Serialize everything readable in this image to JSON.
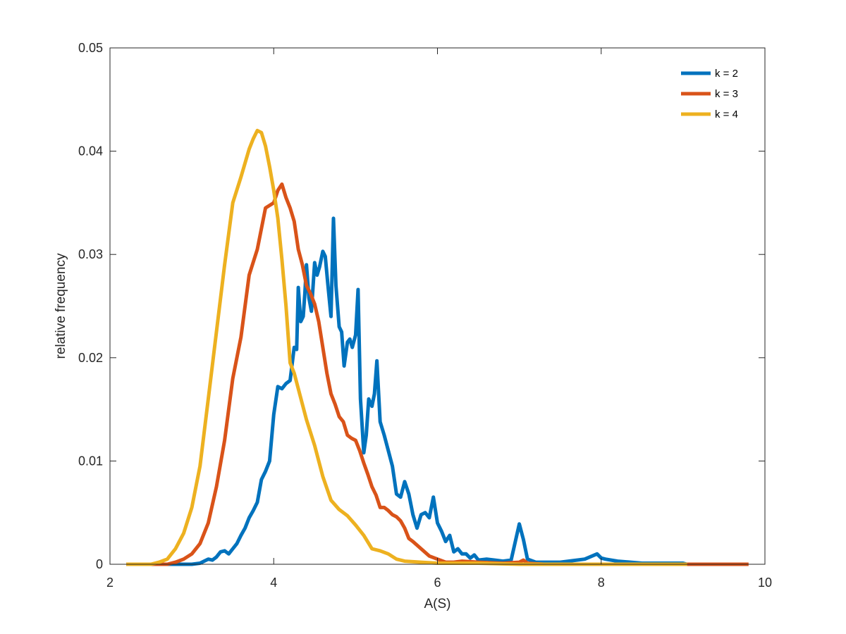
{
  "chart_data": {
    "type": "line",
    "xlabel": "A(S)",
    "ylabel": "relative frequency",
    "xlim": [
      2,
      10
    ],
    "ylim": [
      0,
      0.05
    ],
    "xticks": [
      2,
      4,
      6,
      8,
      10
    ],
    "xtick_labels": [
      "2",
      "4",
      "6",
      "8",
      "10"
    ],
    "yticks": [
      0,
      0.01,
      0.02,
      0.03,
      0.04,
      0.05
    ],
    "ytick_labels": [
      "0",
      "0.01",
      "0.02",
      "0.03",
      "0.04",
      "0.05"
    ],
    "grid": false,
    "legend_position": "top-right",
    "series": [
      {
        "name": "k = 2",
        "color": "#0072BD",
        "x": [
          2.2,
          2.9,
          3.0,
          3.1,
          3.15,
          3.2,
          3.25,
          3.3,
          3.35,
          3.4,
          3.45,
          3.5,
          3.55,
          3.6,
          3.65,
          3.7,
          3.75,
          3.8,
          3.85,
          3.9,
          3.95,
          4.0,
          4.05,
          4.1,
          4.15,
          4.2,
          4.25,
          4.28,
          4.3,
          4.33,
          4.36,
          4.38,
          4.4,
          4.43,
          4.46,
          4.5,
          4.53,
          4.56,
          4.6,
          4.63,
          4.66,
          4.7,
          4.73,
          4.76,
          4.8,
          4.83,
          4.86,
          4.9,
          4.93,
          4.96,
          5.0,
          5.03,
          5.06,
          5.1,
          5.13,
          5.16,
          5.2,
          5.23,
          5.26,
          5.3,
          5.35,
          5.4,
          5.45,
          5.5,
          5.55,
          5.6,
          5.65,
          5.7,
          5.75,
          5.8,
          5.85,
          5.9,
          5.95,
          6.0,
          6.05,
          6.1,
          6.15,
          6.2,
          6.25,
          6.3,
          6.35,
          6.4,
          6.45,
          6.5,
          6.6,
          6.7,
          6.8,
          6.9,
          7.0,
          7.05,
          7.1,
          7.2,
          7.3,
          7.5,
          7.8,
          7.95,
          8.0,
          8.05,
          8.2,
          8.5,
          9.0,
          9.05
        ],
        "values": [
          0,
          0,
          0,
          0.0001,
          0.0003,
          0.0005,
          0.0004,
          0.0007,
          0.0012,
          0.0013,
          0.001,
          0.0015,
          0.002,
          0.0028,
          0.0035,
          0.0045,
          0.0052,
          0.006,
          0.0082,
          0.009,
          0.01,
          0.0145,
          0.0172,
          0.017,
          0.0175,
          0.0178,
          0.021,
          0.0208,
          0.0268,
          0.0235,
          0.024,
          0.0262,
          0.029,
          0.0258,
          0.0245,
          0.0292,
          0.028,
          0.0288,
          0.0303,
          0.0298,
          0.0272,
          0.024,
          0.0335,
          0.027,
          0.023,
          0.0225,
          0.0192,
          0.0215,
          0.0218,
          0.021,
          0.0222,
          0.0266,
          0.016,
          0.0108,
          0.0125,
          0.016,
          0.0153,
          0.0165,
          0.0197,
          0.0138,
          0.0125,
          0.011,
          0.0095,
          0.0068,
          0.0065,
          0.008,
          0.0068,
          0.0048,
          0.0035,
          0.0048,
          0.005,
          0.0045,
          0.0065,
          0.004,
          0.0032,
          0.0022,
          0.0028,
          0.0012,
          0.0015,
          0.001,
          0.001,
          0.0006,
          0.0009,
          0.0004,
          0.0005,
          0.0004,
          0.0003,
          0.0004,
          0.0039,
          0.0024,
          0.0005,
          0.0002,
          0.0002,
          0.0002,
          0.0005,
          0.001,
          0.0006,
          0.0005,
          0.0003,
          0.0001,
          0.0001,
          0
        ],
        "x_note": ""
      },
      {
        "name": "k = 3",
        "color": "#D95319",
        "x": [
          2.2,
          2.7,
          2.8,
          2.9,
          3.0,
          3.1,
          3.2,
          3.3,
          3.4,
          3.5,
          3.6,
          3.7,
          3.8,
          3.9,
          4.0,
          4.05,
          4.1,
          4.15,
          4.2,
          4.25,
          4.3,
          4.35,
          4.4,
          4.45,
          4.5,
          4.55,
          4.6,
          4.65,
          4.7,
          4.75,
          4.8,
          4.85,
          4.9,
          4.95,
          5.0,
          5.05,
          5.1,
          5.15,
          5.2,
          5.25,
          5.3,
          5.35,
          5.4,
          5.45,
          5.5,
          5.55,
          5.6,
          5.65,
          5.7,
          5.8,
          5.9,
          6.0,
          6.1,
          6.2,
          6.3,
          6.5,
          6.8,
          7.0,
          7.05,
          7.1,
          7.3,
          8.0,
          9.0,
          9.8
        ],
        "values": [
          0,
          0,
          0.0002,
          0.0005,
          0.001,
          0.002,
          0.004,
          0.0075,
          0.012,
          0.018,
          0.022,
          0.028,
          0.0305,
          0.0345,
          0.035,
          0.0362,
          0.0368,
          0.0355,
          0.0345,
          0.0332,
          0.0305,
          0.029,
          0.027,
          0.0262,
          0.0252,
          0.0235,
          0.021,
          0.0185,
          0.0165,
          0.0155,
          0.0143,
          0.0138,
          0.0125,
          0.0122,
          0.012,
          0.011,
          0.0098,
          0.0087,
          0.0075,
          0.0067,
          0.0055,
          0.0055,
          0.0052,
          0.0048,
          0.0046,
          0.0042,
          0.0035,
          0.0025,
          0.0022,
          0.0015,
          0.0008,
          0.0005,
          0.0002,
          0.0002,
          0.0003,
          0.0002,
          0.0001,
          0.0002,
          0.0004,
          0.0001,
          0,
          0,
          0,
          0
        ]
      },
      {
        "name": "k = 4",
        "color": "#EDB120",
        "x": [
          2.2,
          2.5,
          2.6,
          2.7,
          2.8,
          2.9,
          3.0,
          3.1,
          3.2,
          3.3,
          3.4,
          3.5,
          3.6,
          3.7,
          3.75,
          3.8,
          3.85,
          3.9,
          3.95,
          4.0,
          4.05,
          4.1,
          4.15,
          4.2,
          4.25,
          4.3,
          4.35,
          4.4,
          4.5,
          4.6,
          4.7,
          4.8,
          4.9,
          5.0,
          5.1,
          5.2,
          5.3,
          5.4,
          5.5,
          5.6,
          5.8,
          6.0,
          6.5,
          7.0,
          8.0,
          9.05
        ],
        "values": [
          0,
          0,
          0.0002,
          0.0005,
          0.0015,
          0.003,
          0.0055,
          0.0095,
          0.016,
          0.0225,
          0.029,
          0.035,
          0.0375,
          0.0402,
          0.0412,
          0.042,
          0.0418,
          0.0405,
          0.0385,
          0.0362,
          0.0335,
          0.0295,
          0.025,
          0.0195,
          0.0185,
          0.017,
          0.0155,
          0.014,
          0.0115,
          0.0085,
          0.0062,
          0.0053,
          0.0047,
          0.0038,
          0.0028,
          0.0015,
          0.0013,
          0.001,
          0.0005,
          0.0003,
          0.0002,
          0.0001,
          0.0001,
          0,
          0,
          0
        ]
      }
    ]
  }
}
